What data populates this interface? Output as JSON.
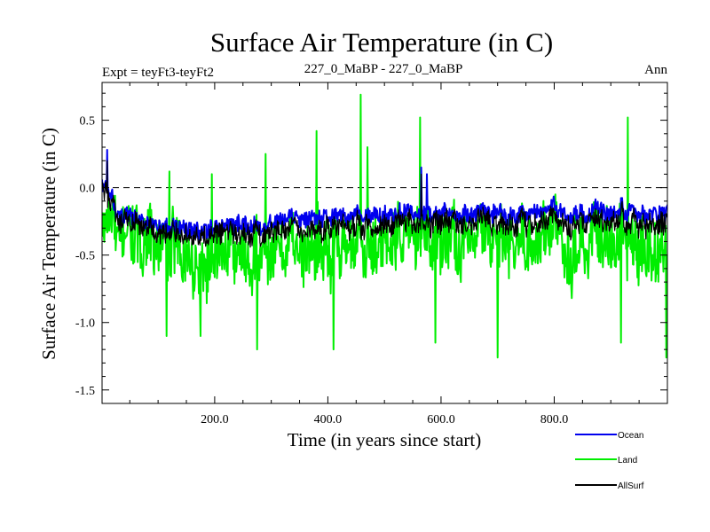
{
  "chart_data": {
    "type": "line",
    "title": "Surface Air Temperature (in C)",
    "subtitle_left": "Expt = teyFt3-teyFt2",
    "subtitle_center": "227_0_MaBP - 227_0_MaBP",
    "subtitle_right": "Ann",
    "xlabel": "Time (in years since start)",
    "ylabel": "Surface Air Temperature (in C)",
    "xlim": [
      1,
      1000
    ],
    "ylim": [
      -1.6,
      0.78
    ],
    "x_ticks": [
      200,
      400,
      600,
      800
    ],
    "x_tick_labels": [
      "200.0",
      "400.0",
      "600.0",
      "800.0"
    ],
    "y_ticks": [
      -1.5,
      -1.0,
      -0.5,
      0.0,
      0.5
    ],
    "y_tick_labels": [
      "-1.5",
      "-1.0",
      "-0.5",
      "0.0",
      "0.5"
    ],
    "reference_line": 0.0,
    "n_points": 1000,
    "series": [
      {
        "name": "Land",
        "color": "#00ee00",
        "base_trend": [
          [
            1,
            -0.25
          ],
          [
            80,
            -0.45
          ],
          [
            200,
            -0.5
          ],
          [
            400,
            -0.45
          ],
          [
            600,
            -0.4
          ],
          [
            800,
            -0.4
          ],
          [
            1000,
            -0.4
          ]
        ],
        "noise_amplitude": 0.22,
        "min": -1.26,
        "max": 0.69,
        "peaks": [
          {
            "x": 458,
            "y": 0.69
          },
          {
            "x": 563,
            "y": 0.52
          },
          {
            "x": 930,
            "y": 0.52
          },
          {
            "x": 380,
            "y": 0.42
          },
          {
            "x": 290,
            "y": 0.25
          },
          {
            "x": 120,
            "y": 0.12
          },
          {
            "x": 195,
            "y": 0.1
          },
          {
            "x": 470,
            "y": 0.3
          },
          {
            "x": 700,
            "y": -1.26
          },
          {
            "x": 275,
            "y": -1.2
          },
          {
            "x": 115,
            "y": -1.1
          },
          {
            "x": 175,
            "y": -1.1
          },
          {
            "x": 410,
            "y": -1.2
          },
          {
            "x": 590,
            "y": -1.15
          },
          {
            "x": 918,
            "y": -1.15
          },
          {
            "x": 998,
            "y": -1.26
          }
        ]
      },
      {
        "name": "Ocean",
        "color": "#0000ee",
        "base_trend": [
          [
            1,
            0.05
          ],
          [
            30,
            -0.2
          ],
          [
            100,
            -0.3
          ],
          [
            200,
            -0.3
          ],
          [
            400,
            -0.22
          ],
          [
            600,
            -0.2
          ],
          [
            800,
            -0.18
          ],
          [
            1000,
            -0.18
          ]
        ],
        "noise_amplitude": 0.06,
        "min": -0.45,
        "max": 0.28,
        "peaks": [
          {
            "x": 10,
            "y": 0.28
          },
          {
            "x": 565,
            "y": 0.15
          },
          {
            "x": 575,
            "y": 0.1
          }
        ]
      },
      {
        "name": "AllSurf",
        "color": "#000000",
        "base_trend": [
          [
            1,
            0.0
          ],
          [
            30,
            -0.25
          ],
          [
            100,
            -0.35
          ],
          [
            200,
            -0.35
          ],
          [
            400,
            -0.3
          ],
          [
            600,
            -0.27
          ],
          [
            800,
            -0.25
          ],
          [
            1000,
            -0.25
          ]
        ],
        "noise_amplitude": 0.08,
        "min": -0.6,
        "max": 0.2,
        "peaks": [
          {
            "x": 10,
            "y": 0.2
          },
          {
            "x": 565,
            "y": 0.1
          }
        ]
      }
    ],
    "legend_order": [
      "Ocean",
      "Land",
      "AllSurf"
    ],
    "legend_position": "bottom-right"
  }
}
